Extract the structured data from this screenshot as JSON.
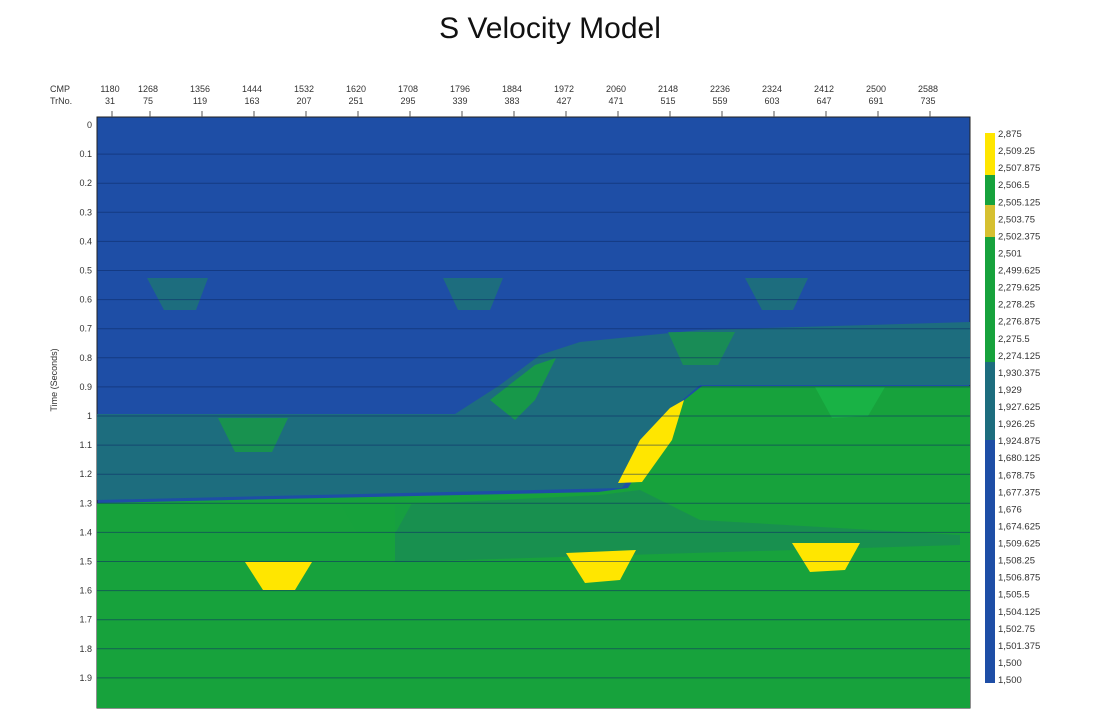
{
  "header": {
    "title": "S Velocity Model"
  },
  "axes": {
    "top_row_labels": [
      "CMP",
      "TrNo."
    ],
    "cmp": [
      "1180",
      "1268",
      "1356",
      "1444",
      "1532",
      "1620",
      "1708",
      "1796",
      "1884",
      "1972",
      "2060",
      "2148",
      "2236",
      "2324",
      "2412",
      "2500",
      "2588"
    ],
    "trno": [
      "31",
      "75",
      "119",
      "163",
      "207",
      "251",
      "295",
      "339",
      "383",
      "427",
      "471",
      "515",
      "559",
      "603",
      "647",
      "691",
      "735"
    ],
    "time_label": "Time (Seconds)",
    "time": [
      "0",
      "0.1",
      "0.2",
      "0.3",
      "0.4",
      "0.5",
      "0.6",
      "0.7",
      "0.8",
      "0.9",
      "1",
      "1.1",
      "1.2",
      "1.3",
      "1.4",
      "1.5",
      "1.6",
      "1.7",
      "1.8",
      "1.9"
    ]
  },
  "colorbar": {
    "labels": [
      "2,875",
      "2,509.25",
      "2,507.875",
      "2,506.5",
      "2,505.125",
      "2,503.75",
      "2,502.375",
      "2,501",
      "2,499.625",
      "2,279.625",
      "2,278.25",
      "2,276.875",
      "2,275.5",
      "2,274.125",
      "1,930.375",
      "1,929",
      "1,927.625",
      "1,926.25",
      "1,924.875",
      "1,680.125",
      "1,678.75",
      "1,677.375",
      "1,676",
      "1,674.625",
      "1,509.625",
      "1,508.25",
      "1,506.875",
      "1,505.5",
      "1,504.125",
      "1,502.75",
      "1,501.375",
      "1,500",
      "1,500"
    ]
  }
}
